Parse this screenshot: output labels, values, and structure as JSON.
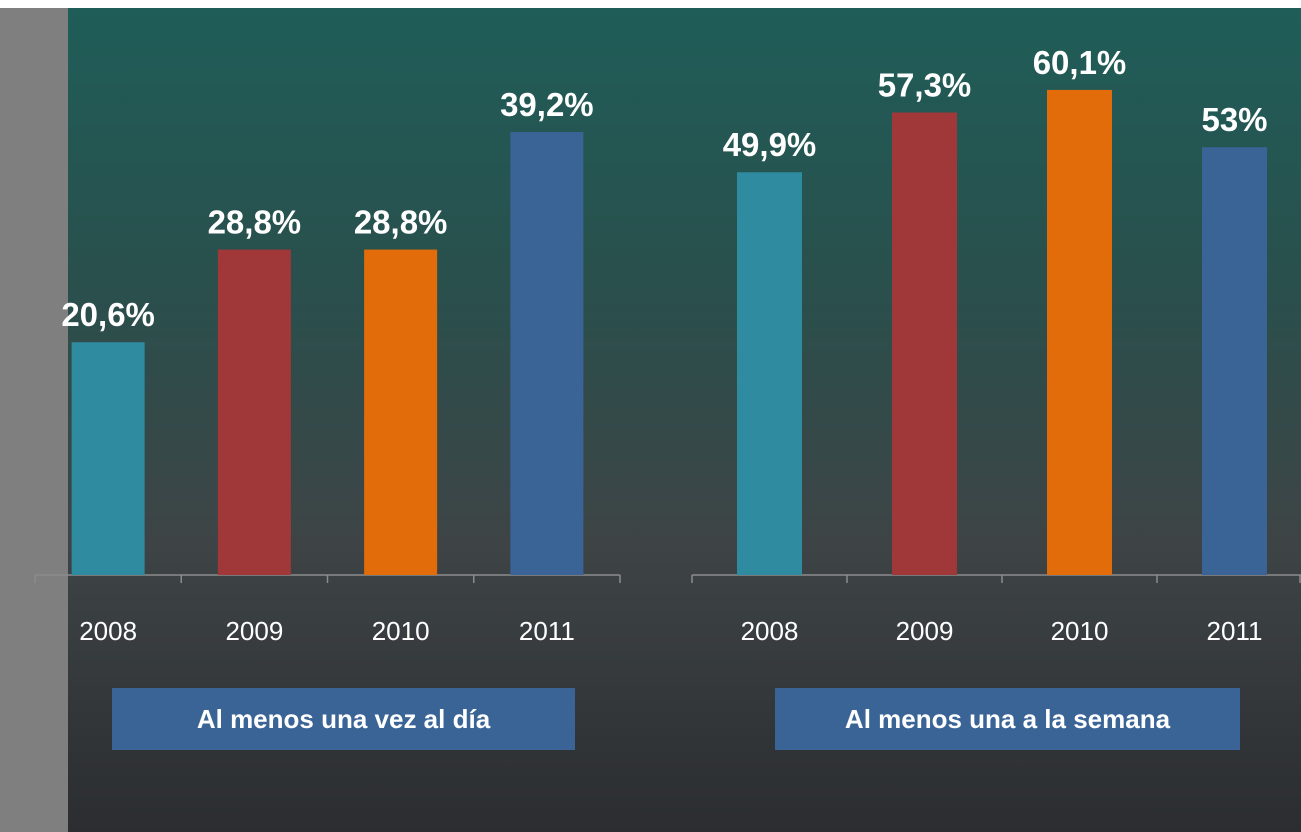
{
  "chart_data": [
    {
      "type": "bar",
      "label": "Al menos una vez al día",
      "categories": [
        "2008",
        "2009",
        "2010",
        "2011"
      ],
      "values": [
        20.6,
        28.8,
        28.8,
        39.2
      ],
      "value_labels": [
        "20,6%",
        "28,8%",
        "28,8%",
        "39,2%"
      ],
      "colors": [
        "#2e8ba0",
        "#a0383a",
        "#e36c0a",
        "#3a6496"
      ],
      "ylim": [
        0,
        50
      ]
    },
    {
      "type": "bar",
      "label": "Al menos una a la semana",
      "categories": [
        "2008",
        "2009",
        "2010",
        "2011"
      ],
      "values": [
        49.9,
        57.3,
        60.1,
        53
      ],
      "value_labels": [
        "49,9%",
        "57,3%",
        "60,1%",
        "53%"
      ],
      "colors": [
        "#2e8ba0",
        "#a0383a",
        "#e36c0a",
        "#3a6496"
      ],
      "ylim": [
        0,
        70
      ]
    }
  ]
}
